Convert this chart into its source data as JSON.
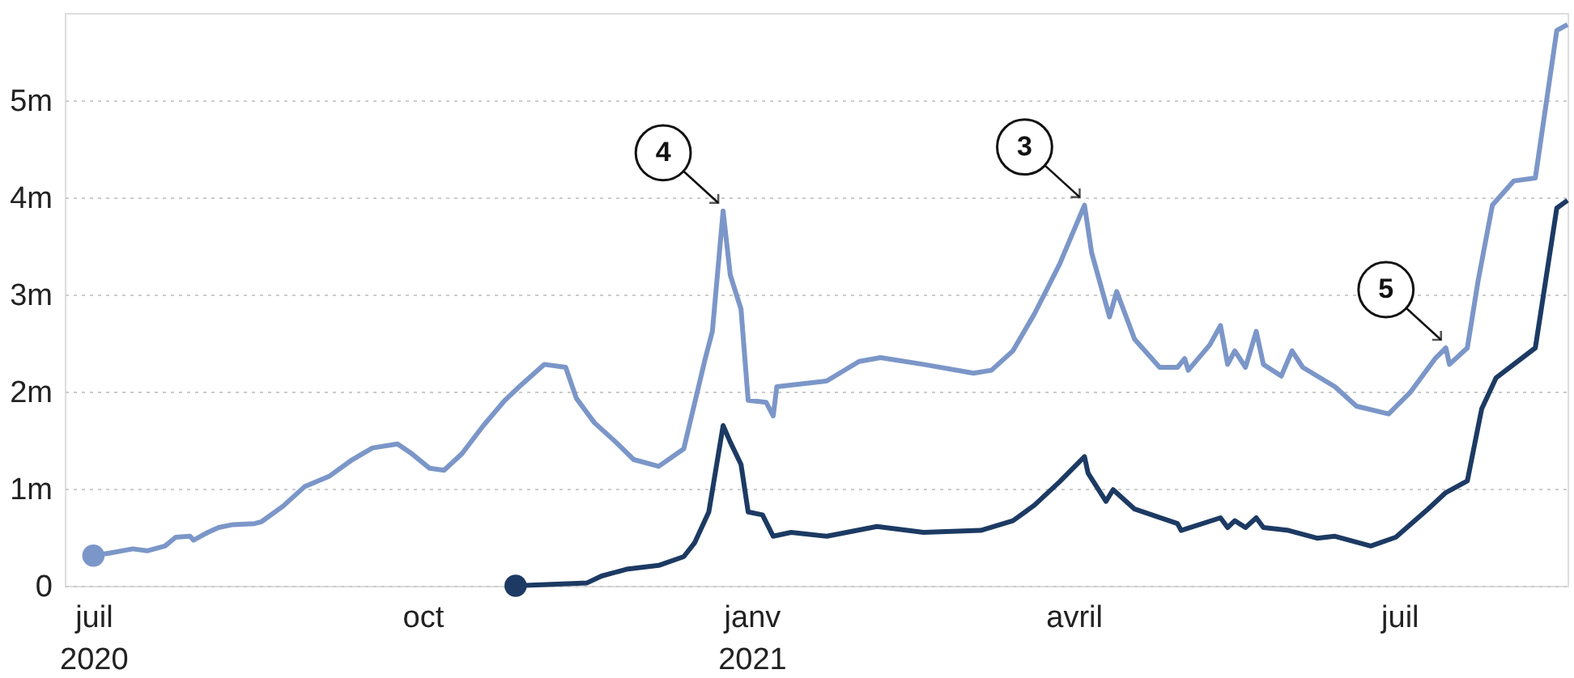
{
  "chart_data": {
    "type": "line",
    "xlim": [
      "2020-06-23",
      "2021-08-17"
    ],
    "xticks": [
      {
        "value": "2020-07-01",
        "label": "juil\n2020"
      },
      {
        "value": "2020-10-01",
        "label": "oct"
      },
      {
        "value": "2021-01-01",
        "label": "janv\n2021"
      },
      {
        "value": "2021-04-01",
        "label": "avril"
      },
      {
        "value": "2021-07-01",
        "label": "juil"
      }
    ],
    "ylim": [
      0,
      5.9
    ],
    "yticks": [
      0,
      {
        "value": 1,
        "label": "1m"
      },
      {
        "value": 2,
        "label": "2m"
      },
      {
        "value": 3,
        "label": "3m"
      },
      {
        "value": 4,
        "label": "4m"
      },
      {
        "value": 5,
        "label": "5m"
      }
    ],
    "grid": "y",
    "line_style": "solid",
    "series": [
      {
        "color": "#7b96c8",
        "x": [
          "2020-07-01",
          "2020-07-06",
          "2020-07-12",
          "2020-07-16",
          "2020-07-21",
          "2020-07-24",
          "2020-07-28",
          "2020-07-29",
          "2020-08-02",
          "2020-08-05",
          "2020-08-09",
          "2020-08-15",
          "2020-08-17",
          "2020-08-23",
          "2020-08-29",
          "2020-09-05",
          "2020-09-11",
          "2020-09-17",
          "2020-09-24",
          "2020-09-28",
          "2020-10-03",
          "2020-10-07",
          "2020-10-12",
          "2020-10-18",
          "2020-10-24",
          "2020-10-28",
          "2020-11-04",
          "2020-11-10",
          "2020-11-13",
          "2020-11-18",
          "2020-11-24",
          "2020-11-29",
          "2020-12-06",
          "2020-12-13",
          "2020-12-19",
          "2020-12-21",
          "2020-12-24",
          "2020-12-26",
          "2020-12-29",
          "2020-12-31",
          "2021-01-05",
          "2021-01-07",
          "2021-01-08",
          "2021-01-22",
          "2021-01-31",
          "2021-02-06",
          "2021-02-18",
          "2021-03-04",
          "2021-03-09",
          "2021-03-15",
          "2021-03-21",
          "2021-03-28",
          "2021-04-04",
          "2021-04-06",
          "2021-04-11",
          "2021-04-13",
          "2021-04-18",
          "2021-04-25",
          "2021-04-30",
          "2021-05-02",
          "2021-05-03",
          "2021-05-09",
          "2021-05-12",
          "2021-05-14",
          "2021-05-16",
          "2021-05-19",
          "2021-05-22",
          "2021-05-24",
          "2021-05-29",
          "2021-06-01",
          "2021-06-04",
          "2021-06-13",
          "2021-06-19",
          "2021-06-28",
          "2021-07-04",
          "2021-07-11",
          "2021-07-14",
          "2021-07-15",
          "2021-07-20",
          "2021-07-23",
          "2021-07-27",
          "2021-08-02",
          "2021-08-08",
          "2021-08-14",
          "2021-08-17"
        ],
        "values": [
          0.31,
          0.34,
          0.38,
          0.36,
          0.41,
          0.5,
          0.51,
          0.47,
          0.55,
          0.6,
          0.63,
          0.64,
          0.66,
          0.82,
          1.02,
          1.13,
          1.29,
          1.42,
          1.46,
          1.36,
          1.21,
          1.19,
          1.36,
          1.65,
          1.91,
          2.05,
          2.28,
          2.25,
          1.93,
          1.68,
          1.48,
          1.3,
          1.23,
          1.41,
          2.34,
          2.62,
          3.86,
          3.2,
          2.85,
          1.91,
          1.89,
          1.75,
          2.05,
          2.11,
          2.31,
          2.35,
          2.28,
          2.19,
          2.22,
          2.42,
          2.8,
          3.31,
          3.92,
          3.43,
          2.77,
          3.03,
          2.54,
          2.25,
          2.25,
          2.34,
          2.22,
          2.48,
          2.68,
          2.28,
          2.42,
          2.25,
          2.62,
          2.28,
          2.16,
          2.42,
          2.25,
          2.05,
          1.85,
          1.77,
          1.99,
          2.34,
          2.45,
          2.28,
          2.45,
          3.14,
          3.92,
          4.17,
          4.2,
          5.72,
          5.78
        ]
      },
      {
        "color": "#1c3a63",
        "x": [
          "2020-10-27",
          "2020-11-16",
          "2020-11-20",
          "2020-11-27",
          "2020-12-06",
          "2020-12-13",
          "2020-12-16",
          "2020-12-20",
          "2020-12-24",
          "2020-12-26",
          "2020-12-29",
          "2020-12-31",
          "2021-01-04",
          "2021-01-07",
          "2021-01-12",
          "2021-01-22",
          "2021-02-05",
          "2021-02-18",
          "2021-03-06",
          "2021-03-15",
          "2021-03-21",
          "2021-03-28",
          "2021-04-04",
          "2021-04-05",
          "2021-04-10",
          "2021-04-12",
          "2021-04-18",
          "2021-04-30",
          "2021-05-01",
          "2021-05-12",
          "2021-05-14",
          "2021-05-16",
          "2021-05-19",
          "2021-05-22",
          "2021-05-24",
          "2021-05-31",
          "2021-06-08",
          "2021-06-13",
          "2021-06-23",
          "2021-06-30",
          "2021-07-09",
          "2021-07-14",
          "2021-07-20",
          "2021-07-24",
          "2021-07-28",
          "2021-08-08",
          "2021-08-14",
          "2021-08-17"
        ],
        "values": [
          0,
          0.03,
          0.1,
          0.17,
          0.21,
          0.3,
          0.44,
          0.76,
          1.65,
          1.48,
          1.25,
          0.76,
          0.73,
          0.51,
          0.55,
          0.51,
          0.61,
          0.55,
          0.57,
          0.67,
          0.83,
          1.07,
          1.33,
          1.16,
          0.87,
          0.99,
          0.79,
          0.64,
          0.57,
          0.7,
          0.6,
          0.67,
          0.6,
          0.7,
          0.6,
          0.57,
          0.49,
          0.51,
          0.41,
          0.5,
          0.79,
          0.96,
          1.08,
          1.82,
          2.14,
          2.45,
          3.89,
          3.97
        ]
      }
    ],
    "annotations": [
      {
        "text": "4",
        "x": "2020-12-24",
        "y": 3.86
      },
      {
        "text": "3",
        "x": "2021-04-04",
        "y": 3.92
      },
      {
        "text": "5",
        "x": "2021-07-14",
        "y": 2.45
      }
    ]
  }
}
